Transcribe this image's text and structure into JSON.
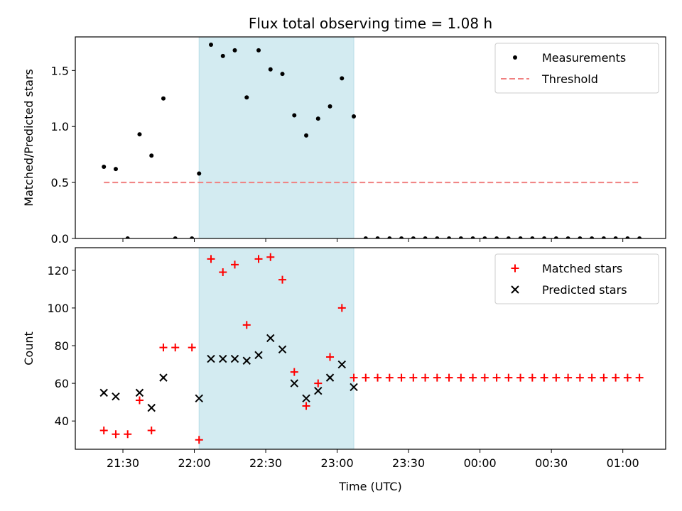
{
  "chart_data": {
    "type": "scatter",
    "title": "Flux total observing time = 1.08 h",
    "xlabel": "Time (UTC)",
    "x_tick_labels": [
      "21:30",
      "22:00",
      "22:30",
      "23:00",
      "23:30",
      "00:00",
      "00:30",
      "01:00"
    ],
    "x_tick_values": [
      "21:30",
      "22:00",
      "22:30",
      "23:00",
      "23:30",
      "00:00",
      "00:30",
      "01:00"
    ],
    "xlim": [
      "21:10",
      "01:18"
    ],
    "highlight_span": [
      "22:02",
      "23:07"
    ],
    "colors": {
      "span": "#d3ebf1",
      "measurements": "#000000",
      "threshold": "#f08080",
      "matched": "#ff0000",
      "predicted": "#000000"
    },
    "panels": [
      {
        "ylabel": "Matched/Predicted stars",
        "ylim": [
          0,
          1.8
        ],
        "y_tick_values": [
          0.0,
          0.5,
          1.0,
          1.5
        ],
        "y_tick_labels": [
          "0.0",
          "0.5",
          "1.0",
          "1.5"
        ],
        "legend_position": "top-right",
        "series": [
          {
            "name": "Measurements",
            "marker": "dot",
            "x": [
              "21:22",
              "21:27",
              "21:32",
              "21:37",
              "21:42",
              "21:47",
              "21:52",
              "21:59",
              "22:02",
              "22:07",
              "22:12",
              "22:17",
              "22:22",
              "22:27",
              "22:32",
              "22:37",
              "22:42",
              "22:47",
              "22:52",
              "22:57",
              "23:02",
              "23:07",
              "23:12",
              "23:17",
              "23:22",
              "23:27",
              "23:32",
              "23:37",
              "23:42",
              "23:47",
              "23:52",
              "23:57",
              "00:02",
              "00:07",
              "00:12",
              "00:17",
              "00:22",
              "00:27",
              "00:32",
              "00:37",
              "00:42",
              "00:47",
              "00:52",
              "00:57",
              "01:02",
              "01:07"
            ],
            "y": [
              0.64,
              0.62,
              0.0,
              0.93,
              0.74,
              1.25,
              0.0,
              0.0,
              0.58,
              1.73,
              1.63,
              1.68,
              1.26,
              1.68,
              1.51,
              1.47,
              1.1,
              0.92,
              1.07,
              1.18,
              1.43,
              1.09,
              0.0,
              0.0,
              0.0,
              0.0,
              0.0,
              0.0,
              0.0,
              0.0,
              0.0,
              0.0,
              0.0,
              0.0,
              0.0,
              0.0,
              0.0,
              0.0,
              0.0,
              0.0,
              0.0,
              0.0,
              0.0,
              0.0,
              0.0,
              0.0
            ]
          },
          {
            "name": "Threshold",
            "marker": "dashed-line",
            "x": [
              "21:22",
              "01:07"
            ],
            "y": [
              0.5,
              0.5
            ]
          }
        ]
      },
      {
        "ylabel": "Count",
        "ylim": [
          25,
          132
        ],
        "y_tick_values": [
          40,
          60,
          80,
          100,
          120
        ],
        "y_tick_labels": [
          "40",
          "60",
          "80",
          "100",
          "120"
        ],
        "legend_position": "top-right",
        "series": [
          {
            "name": "Matched stars",
            "marker": "plus",
            "x": [
              "21:22",
              "21:27",
              "21:32",
              "21:37",
              "21:42",
              "21:47",
              "21:52",
              "21:59",
              "22:02",
              "22:07",
              "22:12",
              "22:17",
              "22:22",
              "22:27",
              "22:32",
              "22:37",
              "22:42",
              "22:47",
              "22:52",
              "22:57",
              "23:02",
              "23:07",
              "23:12",
              "23:17",
              "23:22",
              "23:27",
              "23:32",
              "23:37",
              "23:42",
              "23:47",
              "23:52",
              "23:57",
              "00:02",
              "00:07",
              "00:12",
              "00:17",
              "00:22",
              "00:27",
              "00:32",
              "00:37",
              "00:42",
              "00:47",
              "00:52",
              "00:57",
              "01:02",
              "01:07"
            ],
            "y": [
              35,
              33,
              33,
              51,
              35,
              79,
              79,
              79,
              30,
              126,
              119,
              123,
              91,
              126,
              127,
              115,
              66,
              48,
              60,
              74,
              100,
              63,
              63,
              63,
              63,
              63,
              63,
              63,
              63,
              63,
              63,
              63,
              63,
              63,
              63,
              63,
              63,
              63,
              63,
              63,
              63,
              63,
              63,
              63,
              63,
              63
            ]
          },
          {
            "name": "Predicted stars",
            "marker": "x",
            "x": [
              "21:22",
              "21:27",
              "21:37",
              "21:42",
              "21:47",
              "22:02",
              "22:07",
              "22:12",
              "22:17",
              "22:22",
              "22:27",
              "22:32",
              "22:37",
              "22:42",
              "22:47",
              "22:52",
              "22:57",
              "23:02",
              "23:07"
            ],
            "y": [
              55,
              53,
              55,
              47,
              63,
              52,
              73,
              73,
              73,
              72,
              75,
              84,
              78,
              60,
              52,
              56,
              63,
              70,
              58
            ]
          }
        ]
      }
    ]
  }
}
